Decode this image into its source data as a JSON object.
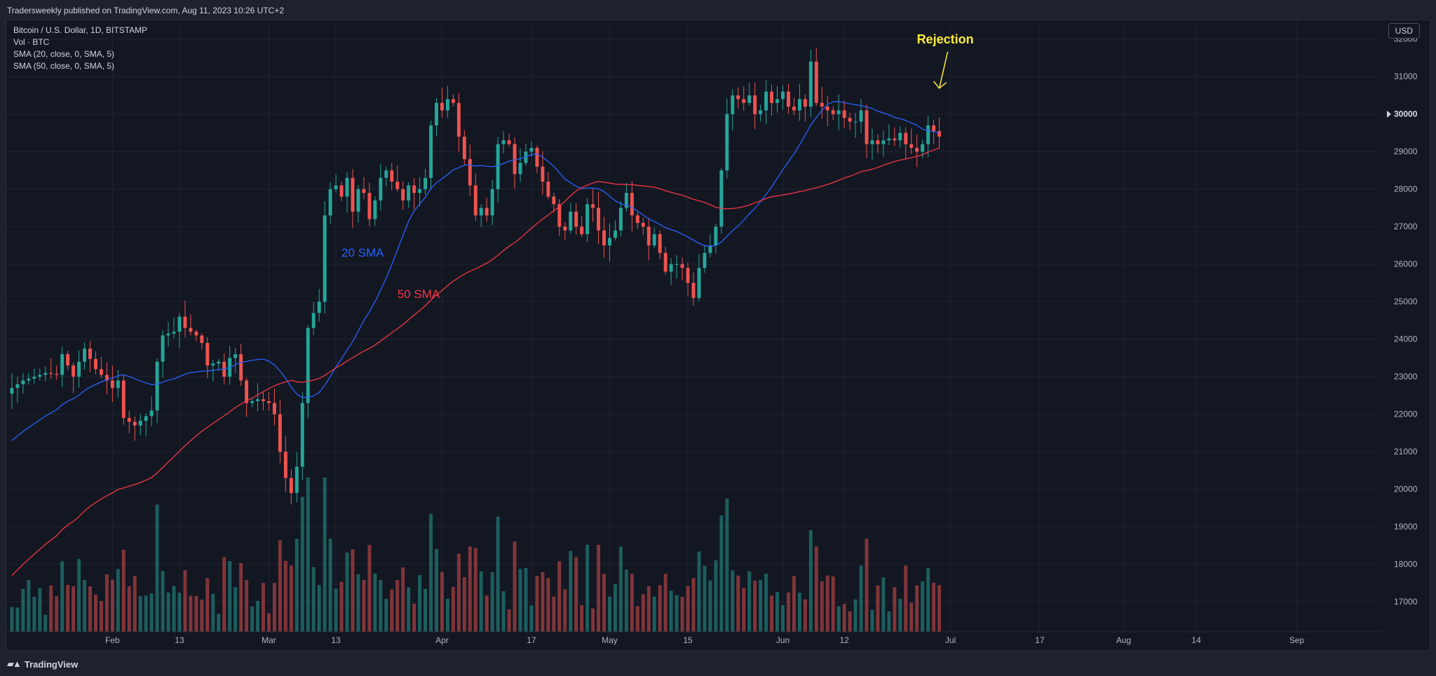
{
  "header": {
    "published_text": "Tradersweekly published on TradingView.com, Aug 11, 2023 10:26 UTC+2"
  },
  "legend": {
    "symbol": "Bitcoin / U.S. Dollar, 1D, BITSTAMP",
    "volume": "Vol · BTC",
    "sma20": "SMA (20, close, 0, SMA, 5)",
    "sma50": "SMA (50, close, 0, SMA, 5)"
  },
  "currency": "USD",
  "footer": {
    "brand": "TradingView",
    "brand_icon": "tradingview-logo-icon"
  },
  "colors": {
    "up": "#26a69a",
    "down": "#ef5350",
    "sma20": "#2962ff",
    "sma50": "#f23645",
    "annotation": "#ffeb3b",
    "grid": "#1f2430",
    "text": "#b2b5be"
  },
  "chart_data": {
    "type": "candlestick",
    "title": "Bitcoin / U.S. Dollar, 1D, BITSTAMP",
    "ylim": [
      16200,
      32500
    ],
    "y_ticks": [
      17000,
      18000,
      19000,
      20000,
      21000,
      22000,
      23000,
      24000,
      25000,
      26000,
      27000,
      28000,
      29000,
      30000,
      31000,
      32000
    ],
    "x_ticks": [
      {
        "label": "Feb",
        "day": 19
      },
      {
        "label": "13",
        "day": 31
      },
      {
        "label": "Mar",
        "day": 47
      },
      {
        "label": "13",
        "day": 59
      },
      {
        "label": "Apr",
        "day": 78
      },
      {
        "label": "17",
        "day": 94
      },
      {
        "label": "May",
        "day": 108
      },
      {
        "label": "15",
        "day": 122
      },
      {
        "label": "Jun",
        "day": 139
      },
      {
        "label": "12",
        "day": 150
      },
      {
        "label": "Jul",
        "day": 169
      },
      {
        "label": "17",
        "day": 185
      },
      {
        "label": "Aug",
        "day": 200
      },
      {
        "label": "14",
        "day": 213
      },
      {
        "label": "Sep",
        "day": 231
      }
    ],
    "x_range_days": [
      0,
      246
    ],
    "last_price_label": "30000",
    "close_anchors": [
      [
        0,
        22700
      ],
      [
        2,
        22900
      ],
      [
        4,
        23000
      ],
      [
        6,
        23100
      ],
      [
        8,
        23050
      ],
      [
        9,
        23600
      ],
      [
        11,
        23000
      ],
      [
        12,
        23400
      ],
      [
        13,
        23750
      ],
      [
        15,
        23200
      ],
      [
        17,
        22900
      ],
      [
        18,
        22700
      ],
      [
        19,
        22900
      ],
      [
        20,
        21900
      ],
      [
        22,
        21700
      ],
      [
        24,
        21950
      ],
      [
        25,
        22100
      ],
      [
        26,
        23400
      ],
      [
        27,
        24100
      ],
      [
        29,
        24200
      ],
      [
        30,
        24600
      ],
      [
        31,
        24300
      ],
      [
        33,
        24100
      ],
      [
        34,
        23900
      ],
      [
        35,
        23300
      ],
      [
        37,
        23400
      ],
      [
        38,
        23000
      ],
      [
        39,
        23500
      ],
      [
        40,
        23600
      ],
      [
        41,
        22900
      ],
      [
        42,
        22300
      ],
      [
        44,
        22400
      ],
      [
        46,
        22300
      ],
      [
        47,
        22000
      ],
      [
        48,
        21000
      ],
      [
        49,
        20300
      ],
      [
        50,
        19900
      ],
      [
        51,
        20600
      ],
      [
        52,
        22300
      ],
      [
        53,
        24300
      ],
      [
        54,
        24700
      ],
      [
        55,
        25000
      ],
      [
        56,
        27300
      ],
      [
        57,
        28000
      ],
      [
        58,
        28100
      ],
      [
        59,
        27800
      ],
      [
        60,
        28300
      ],
      [
        61,
        27400
      ],
      [
        62,
        28000
      ],
      [
        63,
        27900
      ],
      [
        64,
        27200
      ],
      [
        65,
        27700
      ],
      [
        66,
        28300
      ],
      [
        67,
        28500
      ],
      [
        68,
        28200
      ],
      [
        69,
        28000
      ],
      [
        70,
        27700
      ],
      [
        71,
        28100
      ],
      [
        72,
        27900
      ],
      [
        73,
        28000
      ],
      [
        74,
        28300
      ],
      [
        75,
        29700
      ],
      [
        76,
        30300
      ],
      [
        77,
        30100
      ],
      [
        78,
        30400
      ],
      [
        79,
        30300
      ],
      [
        80,
        29400
      ],
      [
        81,
        28800
      ],
      [
        82,
        28100
      ],
      [
        83,
        27300
      ],
      [
        84,
        27500
      ],
      [
        85,
        27300
      ],
      [
        86,
        28000
      ],
      [
        87,
        29200
      ],
      [
        88,
        29300
      ],
      [
        89,
        29200
      ],
      [
        90,
        28400
      ],
      [
        91,
        28700
      ],
      [
        92,
        29000
      ],
      [
        93,
        29100
      ],
      [
        94,
        28600
      ],
      [
        95,
        28200
      ],
      [
        96,
        27800
      ],
      [
        97,
        27600
      ],
      [
        98,
        27000
      ],
      [
        99,
        26900
      ],
      [
        100,
        27400
      ],
      [
        101,
        27000
      ],
      [
        102,
        26800
      ],
      [
        103,
        27600
      ],
      [
        104,
        27500
      ],
      [
        105,
        26900
      ],
      [
        106,
        26500
      ],
      [
        107,
        26700
      ],
      [
        108,
        26900
      ],
      [
        109,
        27500
      ],
      [
        110,
        27900
      ],
      [
        111,
        27300
      ],
      [
        112,
        27100
      ],
      [
        113,
        27000
      ],
      [
        114,
        26500
      ],
      [
        115,
        26800
      ],
      [
        116,
        26300
      ],
      [
        117,
        25800
      ],
      [
        118,
        26000
      ],
      [
        119,
        26000
      ],
      [
        120,
        25900
      ],
      [
        121,
        25500
      ],
      [
        122,
        25100
      ],
      [
        123,
        25900
      ],
      [
        124,
        26300
      ],
      [
        125,
        26500
      ],
      [
        126,
        27000
      ],
      [
        127,
        28500
      ],
      [
        128,
        30000
      ],
      [
        129,
        30500
      ],
      [
        130,
        30400
      ],
      [
        131,
        30300
      ],
      [
        132,
        30500
      ],
      [
        133,
        30000
      ],
      [
        134,
        30100
      ],
      [
        135,
        30600
      ],
      [
        136,
        30300
      ],
      [
        137,
        30400
      ],
      [
        138,
        30600
      ],
      [
        139,
        30200
      ],
      [
        140,
        30100
      ],
      [
        141,
        30400
      ],
      [
        142,
        30200
      ],
      [
        143,
        31400
      ],
      [
        144,
        30300
      ],
      [
        145,
        30200
      ],
      [
        146,
        30100
      ],
      [
        147,
        30000
      ],
      [
        148,
        30100
      ],
      [
        149,
        29900
      ],
      [
        150,
        29800
      ],
      [
        151,
        29800
      ],
      [
        152,
        30100
      ],
      [
        153,
        29200
      ],
      [
        154,
        29300
      ],
      [
        155,
        29200
      ],
      [
        156,
        29300
      ],
      [
        157,
        29350
      ],
      [
        158,
        29300
      ],
      [
        159,
        29500
      ],
      [
        160,
        29200
      ],
      [
        161,
        29100
      ],
      [
        162,
        29000
      ],
      [
        163,
        29200
      ],
      [
        164,
        29700
      ],
      [
        165,
        29550
      ],
      [
        166,
        29400
      ]
    ],
    "series": [
      {
        "name": "Volume (BTC)",
        "scale": "volume"
      },
      {
        "name": "20 SMA",
        "label": "20 SMA",
        "label_at": [
          60,
          26200
        ]
      },
      {
        "name": "50 SMA",
        "label": "50 SMA",
        "label_at": [
          70,
          25100
        ]
      }
    ],
    "annotations": [
      {
        "text": "Rejection",
        "day": 166,
        "price": 31400
      }
    ]
  }
}
